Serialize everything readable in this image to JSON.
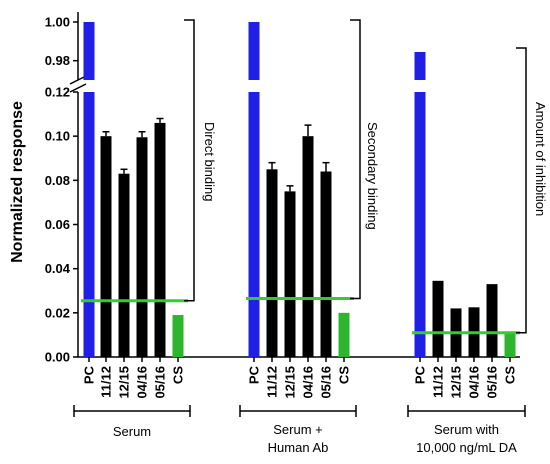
{
  "chart_data": {
    "type": "bar",
    "ylabel": "Normalized response",
    "y_ticks_lower": [
      "0.00",
      "0.02",
      "0.04",
      "0.06",
      "0.08",
      "0.10",
      "0.12"
    ],
    "y_ticks_upper": [
      "0.98",
      "1.00"
    ],
    "ylim_lower": [
      0,
      0.12
    ],
    "ylim_upper": [
      0.97,
      1.0
    ],
    "axis_break": true,
    "categories": [
      "PC",
      "11/12",
      "12/15",
      "04/16",
      "05/16",
      "CS"
    ],
    "colors": {
      "pc": "#1f1fe6",
      "sample": "#000000",
      "cs": "#2db52d",
      "threshold": "#33cc33"
    },
    "groups": [
      {
        "label": "Serum",
        "annotation": "Direct binding",
        "values": [
          1.0,
          0.1,
          0.083,
          0.0995,
          0.106,
          0.019
        ],
        "errors": [
          0,
          0.002,
          0.002,
          0.0025,
          0.002,
          0
        ],
        "threshold": 0.0255
      },
      {
        "label": "Serum + Human Ab",
        "label_lines": [
          "Serum +",
          "Human Ab"
        ],
        "annotation": "Secondary binding",
        "values": [
          1.0,
          0.085,
          0.075,
          0.1,
          0.084,
          0.02
        ],
        "errors": [
          0,
          0.003,
          0.0025,
          0.005,
          0.004,
          0
        ],
        "threshold": 0.0265
      },
      {
        "label": "Serum with 10,000 ng/mL DA",
        "label_lines": [
          "Serum with",
          "10,000 ng/mL DA"
        ],
        "annotation": "Amount of inhibition",
        "values": [
          0.9845,
          0.0345,
          0.022,
          0.0225,
          0.033,
          0.011
        ],
        "errors": [
          0,
          0,
          0,
          0,
          0,
          0
        ],
        "threshold": 0.011
      }
    ]
  }
}
